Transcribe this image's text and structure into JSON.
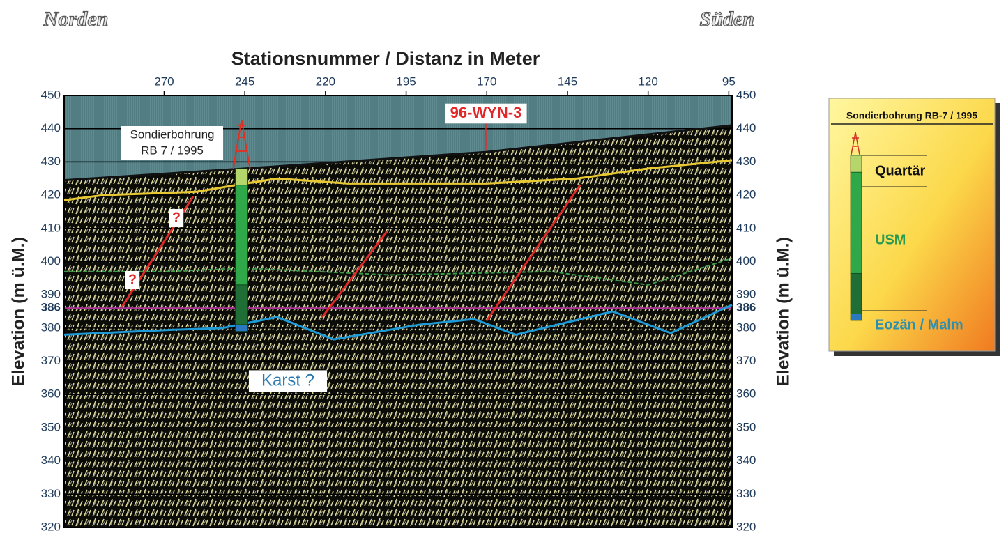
{
  "header": {
    "left": "Norden",
    "right": "Süden"
  },
  "chart_data": {
    "type": "seismic-section",
    "title": "Stationsnummer / Distanz in Meter",
    "y_label": "Elevation (m ü.M.)",
    "xlim": [
      301,
      94
    ],
    "xticks": [
      270,
      245,
      220,
      195,
      170,
      145,
      120,
      95
    ],
    "ylim": [
      320,
      450
    ],
    "yticks": [
      320,
      330,
      340,
      350,
      360,
      370,
      380,
      390,
      400,
      410,
      420,
      430,
      440,
      450
    ],
    "grid": true,
    "reference_line": {
      "value": 386,
      "color": "#b0309a"
    },
    "series": [
      {
        "color": "#111111",
        "x": [
          301,
          245,
          170,
          94
        ],
        "values": [
          424.5,
          428,
          433,
          441
        ]
      },
      {
        "color": "#e8c832",
        "x": [
          301,
          289,
          260,
          248,
          235,
          213,
          170,
          142,
          120,
          94
        ],
        "values": [
          418.5,
          420,
          421,
          423,
          425,
          423.5,
          423.5,
          425,
          428,
          430.5
        ]
      },
      {
        "color": "#3a9a4a",
        "x": [
          301,
          270,
          245,
          200,
          150,
          120,
          94
        ],
        "values": [
          397,
          397,
          398,
          396,
          397,
          393,
          401
        ]
      },
      {
        "color": "#1e9ad6",
        "x": [
          301,
          267,
          252,
          235,
          217.5,
          191,
          174,
          161,
          131,
          113,
          94
        ],
        "values": [
          378,
          379.5,
          380,
          383.3,
          376.6,
          381,
          382.7,
          378,
          385,
          378.5,
          387
        ]
      },
      {
        "color": "#e02828",
        "x": [
          283,
          261
        ],
        "values": [
          386.5,
          419.6
        ]
      },
      {
        "color": "#e02828",
        "x": [
          221,
          201
        ],
        "values": [
          383.3,
          409
        ]
      },
      {
        "color": "#e02828",
        "x": [
          170,
          141
        ],
        "values": [
          382.3,
          423.2
        ]
      }
    ],
    "borehole": {
      "label": [
        "Sondierbohrung",
        "RB 7 / 1995"
      ],
      "x": 246,
      "layers": [
        {
          "top": 428,
          "bottom": 423,
          "color": "#b5d66b"
        },
        {
          "top": 423,
          "bottom": 393,
          "color": "#2fa84a"
        },
        {
          "top": 393,
          "bottom": 381,
          "color": "#1f6e35"
        },
        {
          "top": 381,
          "bottom": 379,
          "color": "#2a78c0"
        }
      ]
    },
    "annotations": [
      {
        "text": "96-WYN-3",
        "color": "#e02828"
      },
      {
        "text": "?",
        "color": "#e02828"
      },
      {
        "text": "?",
        "color": "#e02828"
      },
      {
        "text": "Karst ?",
        "color": "#2a7ab0"
      }
    ],
    "legend": {
      "title": "Sondierbohrung RB-7 / 1995",
      "entries": [
        {
          "text": "Quartär",
          "color": "#111111"
        },
        {
          "text": "USM",
          "color": "#2a9a50"
        },
        {
          "text": "Eozän / Malm",
          "color": "#2a8fb0"
        }
      ]
    }
  }
}
